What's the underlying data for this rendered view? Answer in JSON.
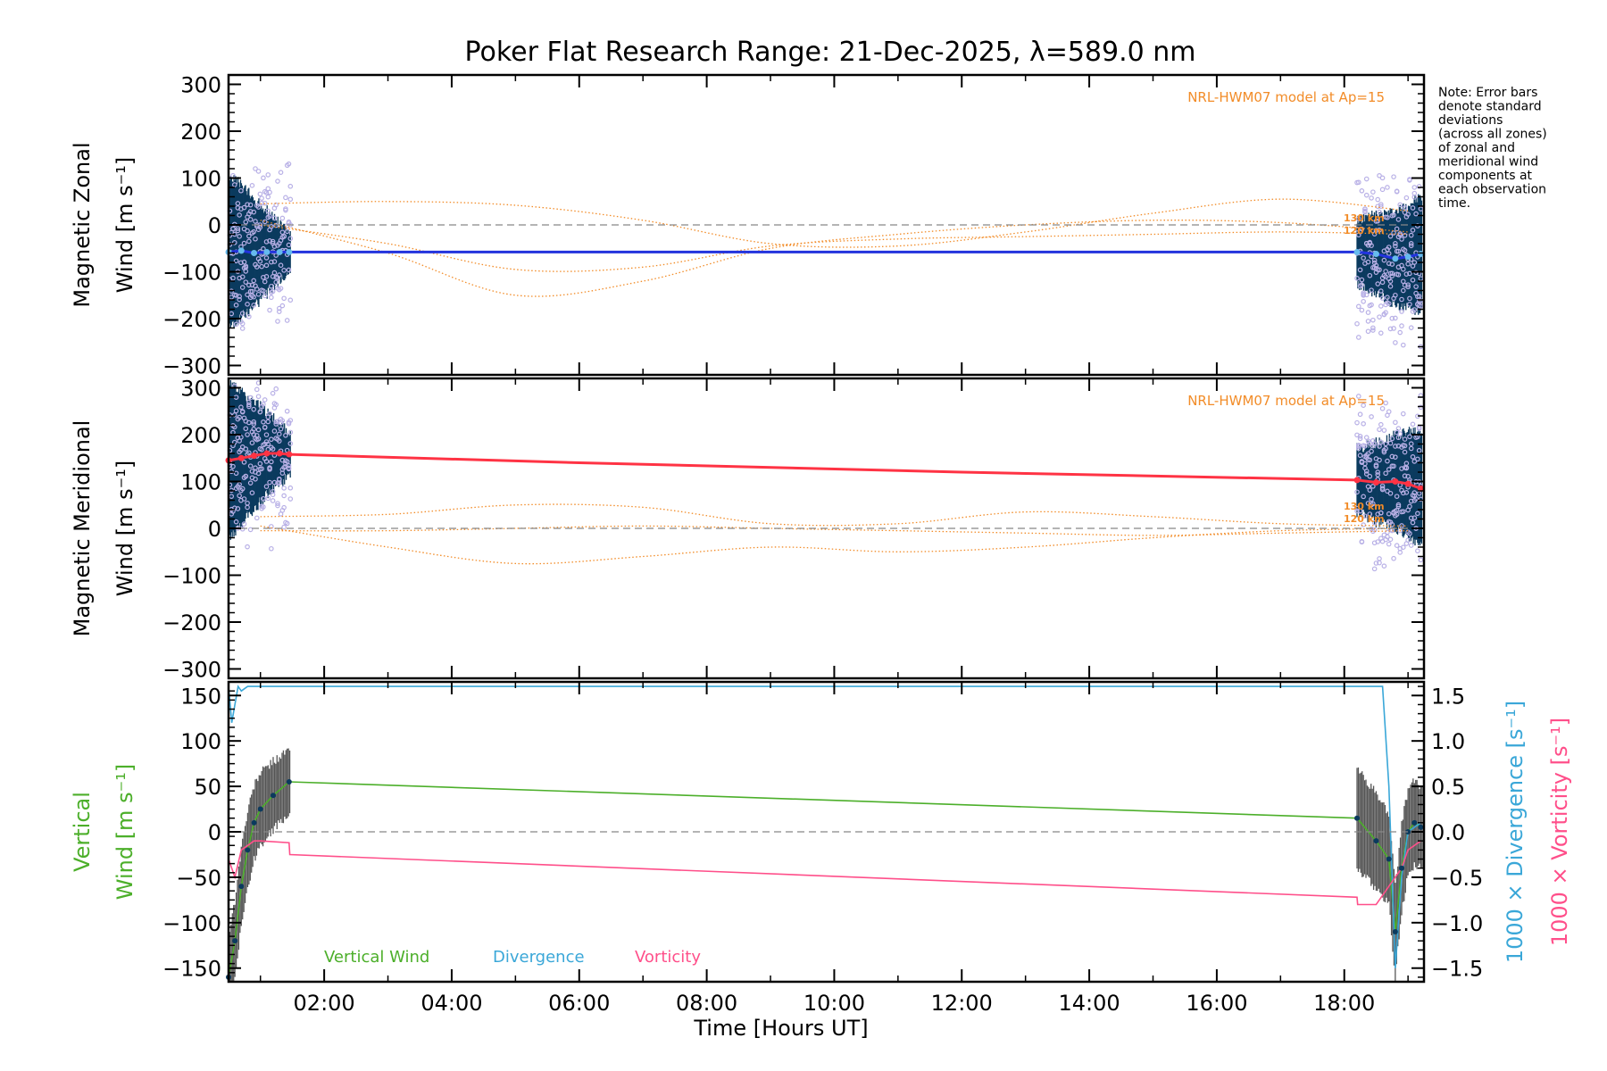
{
  "title": "Poker Flat Research Range: 21-Dec-2025, λ=589.0 nm",
  "note": [
    "Note: Error bars",
    "denote standard",
    "deviations",
    "(across all zones)",
    "of zonal and",
    "meridional wind",
    "components at",
    "each observation",
    "time."
  ],
  "xaxis": {
    "label": "Time [Hours UT]",
    "ticks": [
      {
        "h": 2,
        "label": "02:00"
      },
      {
        "h": 4,
        "label": "04:00"
      },
      {
        "h": 6,
        "label": "06:00"
      },
      {
        "h": 8,
        "label": "08:00"
      },
      {
        "h": 10,
        "label": "10:00"
      },
      {
        "h": 12,
        "label": "12:00"
      },
      {
        "h": 14,
        "label": "14:00"
      },
      {
        "h": 16,
        "label": "16:00"
      },
      {
        "h": 18,
        "label": "18:00"
      }
    ],
    "range": [
      0.5,
      19.25
    ]
  },
  "colors": {
    "axes": "#000000",
    "zonal": "#2233dd",
    "meridional": "#ff3344",
    "errorbar": "#0b3a5e",
    "zone_points": "#b8b0e6",
    "model": "#f28c28",
    "vertical": "#4caf2a",
    "divergence": "#3aa7d8",
    "vorticity": "#ff4f8a",
    "zero_line": "#888888"
  },
  "chart_data": [
    {
      "type": "line",
      "panel": "zonal",
      "ylabel_line1": "Magnetic Zonal",
      "ylabel_line2": "Wind [m s⁻¹]",
      "ylim": [
        -320,
        320
      ],
      "yticks": [
        {
          "v": 300,
          "label": "300"
        },
        {
          "v": 200,
          "label": "200"
        },
        {
          "v": 100,
          "label": "100"
        },
        {
          "v": 0,
          "label": "0"
        },
        {
          "v": -100,
          "label": "−100"
        },
        {
          "v": -200,
          "label": "−200"
        },
        {
          "v": -300,
          "label": "−300"
        }
      ],
      "model_label": "NRL-HWM07 model at Ap=15",
      "model_alt_labels": [
        "130 km",
        "120 km"
      ],
      "series": [
        {
          "name": "Zonal wind",
          "x": [
            0.5,
            0.7,
            0.9,
            1.1,
            1.3,
            1.45,
            6.0,
            12.0,
            18.2,
            18.5,
            18.8,
            19.0,
            19.2
          ],
          "values": [
            -58,
            -55,
            -60,
            -58,
            -58,
            -58,
            -58,
            -58,
            -58,
            -62,
            -72,
            -68,
            -62
          ]
        }
      ],
      "models": [
        {
          "x": [
            1.0,
            3.0,
            5.0,
            7.0,
            9.0,
            11.0,
            13.0,
            15.0,
            17.0,
            19.0
          ],
          "values": [
            45,
            50,
            42,
            10,
            -40,
            -45,
            -15,
            25,
            55,
            30
          ]
        },
        {
          "x": [
            1.0,
            3.0,
            5.0,
            7.0,
            9.0,
            11.0,
            13.0,
            15.0,
            17.0,
            19.0
          ],
          "values": [
            10,
            -60,
            -150,
            -120,
            -50,
            -20,
            0,
            10,
            5,
            -15
          ]
        },
        {
          "x": [
            1.0,
            3.0,
            5.0,
            7.0,
            9.0,
            11.0,
            13.0,
            15.0,
            17.0,
            19.0
          ],
          "values": [
            0,
            -40,
            -95,
            -90,
            -45,
            -30,
            -25,
            -20,
            -15,
            -20
          ]
        }
      ]
    },
    {
      "type": "line",
      "panel": "meridional",
      "ylabel_line1": "Magnetic Meridional",
      "ylabel_line2": "Wind [m s⁻¹]",
      "ylim": [
        -320,
        320
      ],
      "yticks": [
        {
          "v": 300,
          "label": "300"
        },
        {
          "v": 200,
          "label": "200"
        },
        {
          "v": 100,
          "label": "100"
        },
        {
          "v": 0,
          "label": "0"
        },
        {
          "v": -100,
          "label": "−100"
        },
        {
          "v": -200,
          "label": "−200"
        },
        {
          "v": -300,
          "label": "−300"
        }
      ],
      "model_label": "NRL-HWM07 model at Ap=15",
      "model_alt_labels": [
        "130 km",
        "120 km"
      ],
      "series": [
        {
          "name": "Meridional wind",
          "x": [
            0.5,
            0.7,
            0.9,
            1.1,
            1.3,
            1.45,
            6.0,
            12.0,
            18.2,
            18.5,
            18.8,
            19.0,
            19.2
          ],
          "values": [
            145,
            150,
            155,
            160,
            160,
            158,
            140,
            120,
            103,
            98,
            100,
            95,
            85
          ]
        }
      ],
      "models": [
        {
          "x": [
            1.0,
            3.0,
            5.0,
            7.0,
            9.0,
            11.0,
            13.0,
            15.0,
            17.0,
            19.0
          ],
          "values": [
            25,
            30,
            50,
            45,
            10,
            10,
            35,
            25,
            10,
            5
          ]
        },
        {
          "x": [
            1.0,
            3.0,
            5.0,
            7.0,
            9.0,
            11.0,
            13.0,
            15.0,
            17.0,
            19.0
          ],
          "values": [
            5,
            -40,
            -75,
            -60,
            -40,
            -50,
            -40,
            -20,
            -5,
            0
          ]
        },
        {
          "x": [
            1.0,
            3.0,
            5.0,
            7.0,
            9.0,
            11.0,
            13.0,
            15.0,
            17.0,
            19.0
          ],
          "values": [
            -5,
            -5,
            0,
            5,
            0,
            -5,
            -10,
            -15,
            -10,
            -5
          ]
        }
      ]
    },
    {
      "type": "line",
      "panel": "vertical",
      "ylabel_line1": "Vertical",
      "ylabel_line2": "Wind [m s⁻¹]",
      "ylim": [
        -165,
        165
      ],
      "yticks": [
        {
          "v": 150,
          "label": "150"
        },
        {
          "v": 100,
          "label": "100"
        },
        {
          "v": 50,
          "label": "50"
        },
        {
          "v": 0,
          "label": "0"
        },
        {
          "v": -50,
          "label": "−50"
        },
        {
          "v": -100,
          "label": "−100"
        },
        {
          "v": -150,
          "label": "−150"
        }
      ],
      "right_axis": {
        "ylim": [
          -1.65,
          1.65
        ],
        "ticks": [
          {
            "v": 1.5,
            "label": "1.5"
          },
          {
            "v": 1.0,
            "label": "1.0"
          },
          {
            "v": 0.5,
            "label": "0.5"
          },
          {
            "v": 0.0,
            "label": "0.0"
          },
          {
            "v": -0.5,
            "label": "−0.5"
          },
          {
            "v": -1.0,
            "label": "−1.0"
          },
          {
            "v": -1.5,
            "label": "−1.5"
          }
        ],
        "label_divergence": "1000 × Divergence [s⁻¹]",
        "label_vorticity": "1000 × Vorticity [s⁻¹]"
      },
      "legend": {
        "vertical": "Vertical Wind",
        "divergence": "Divergence",
        "vorticity": "Vorticity"
      },
      "series": [
        {
          "name": "Vertical Wind",
          "x": [
            0.5,
            0.6,
            0.7,
            0.8,
            0.9,
            1.0,
            1.2,
            1.45,
            18.2,
            18.5,
            18.7,
            18.8,
            18.9,
            19.0,
            19.1,
            19.2
          ],
          "values": [
            -160,
            -120,
            -60,
            -20,
            10,
            25,
            40,
            55,
            15,
            -10,
            -30,
            -110,
            -40,
            0,
            10,
            5
          ]
        },
        {
          "name": "Divergence",
          "x": [
            0.5,
            0.55,
            0.6,
            0.65,
            0.7,
            0.8,
            0.9,
            18.6,
            18.7,
            18.8,
            18.9,
            19.0,
            19.2
          ],
          "values": [
            1.6,
            1.2,
            1.4,
            1.6,
            1.55,
            1.6,
            1.6,
            1.6,
            0.5,
            -1.5,
            -0.5,
            0.0,
            0.1
          ]
        },
        {
          "name": "Vorticity",
          "x": [
            0.5,
            0.6,
            0.7,
            0.8,
            0.9,
            1.0,
            1.45,
            1.46,
            18.2,
            18.21,
            18.5,
            18.7,
            18.9,
            19.0,
            19.2
          ],
          "values": [
            -0.3,
            -0.5,
            -0.2,
            -0.15,
            -0.1,
            -0.1,
            -0.12,
            -0.25,
            -0.72,
            -0.8,
            -0.8,
            -0.6,
            -0.4,
            -0.2,
            -0.1
          ]
        }
      ]
    }
  ]
}
